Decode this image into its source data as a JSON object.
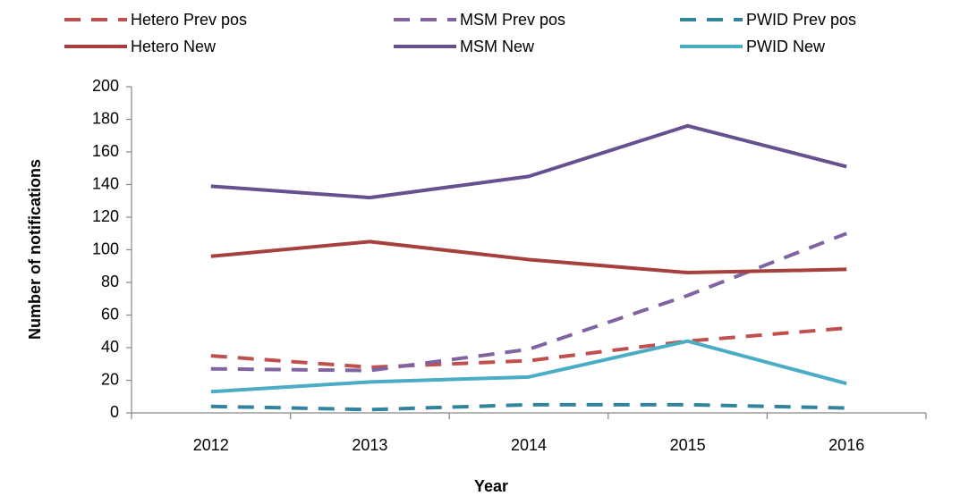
{
  "chart_data": {
    "type": "line",
    "xlabel": "Year",
    "ylabel": "Number of notifications",
    "categories": [
      "2012",
      "2013",
      "2014",
      "2015",
      "2016"
    ],
    "series": [
      {
        "name": "Hetero Prev pos",
        "color": "#c0504d",
        "dash": true,
        "values": [
          35,
          28,
          32,
          44,
          52
        ]
      },
      {
        "name": "MSM Prev pos",
        "color": "#8064a2",
        "dash": true,
        "values": [
          27,
          26,
          39,
          72,
          110
        ]
      },
      {
        "name": "PWID Prev pos",
        "color": "#31849b",
        "dash": true,
        "values": [
          4,
          2,
          5,
          5,
          3
        ]
      },
      {
        "name": "Hetero New",
        "color": "#a5403d",
        "dash": false,
        "values": [
          96,
          105,
          94,
          86,
          88
        ]
      },
      {
        "name": "MSM New",
        "color": "#66508f",
        "dash": false,
        "values": [
          139,
          132,
          145,
          176,
          151
        ]
      },
      {
        "name": "PWID New",
        "color": "#4bacc6",
        "dash": false,
        "values": [
          13,
          19,
          22,
          44,
          18
        ]
      }
    ],
    "ylim": [
      0,
      200
    ],
    "yticks": [
      0,
      20,
      40,
      60,
      80,
      100,
      120,
      140,
      160,
      180,
      200
    ],
    "grid": false,
    "legend": "top"
  }
}
